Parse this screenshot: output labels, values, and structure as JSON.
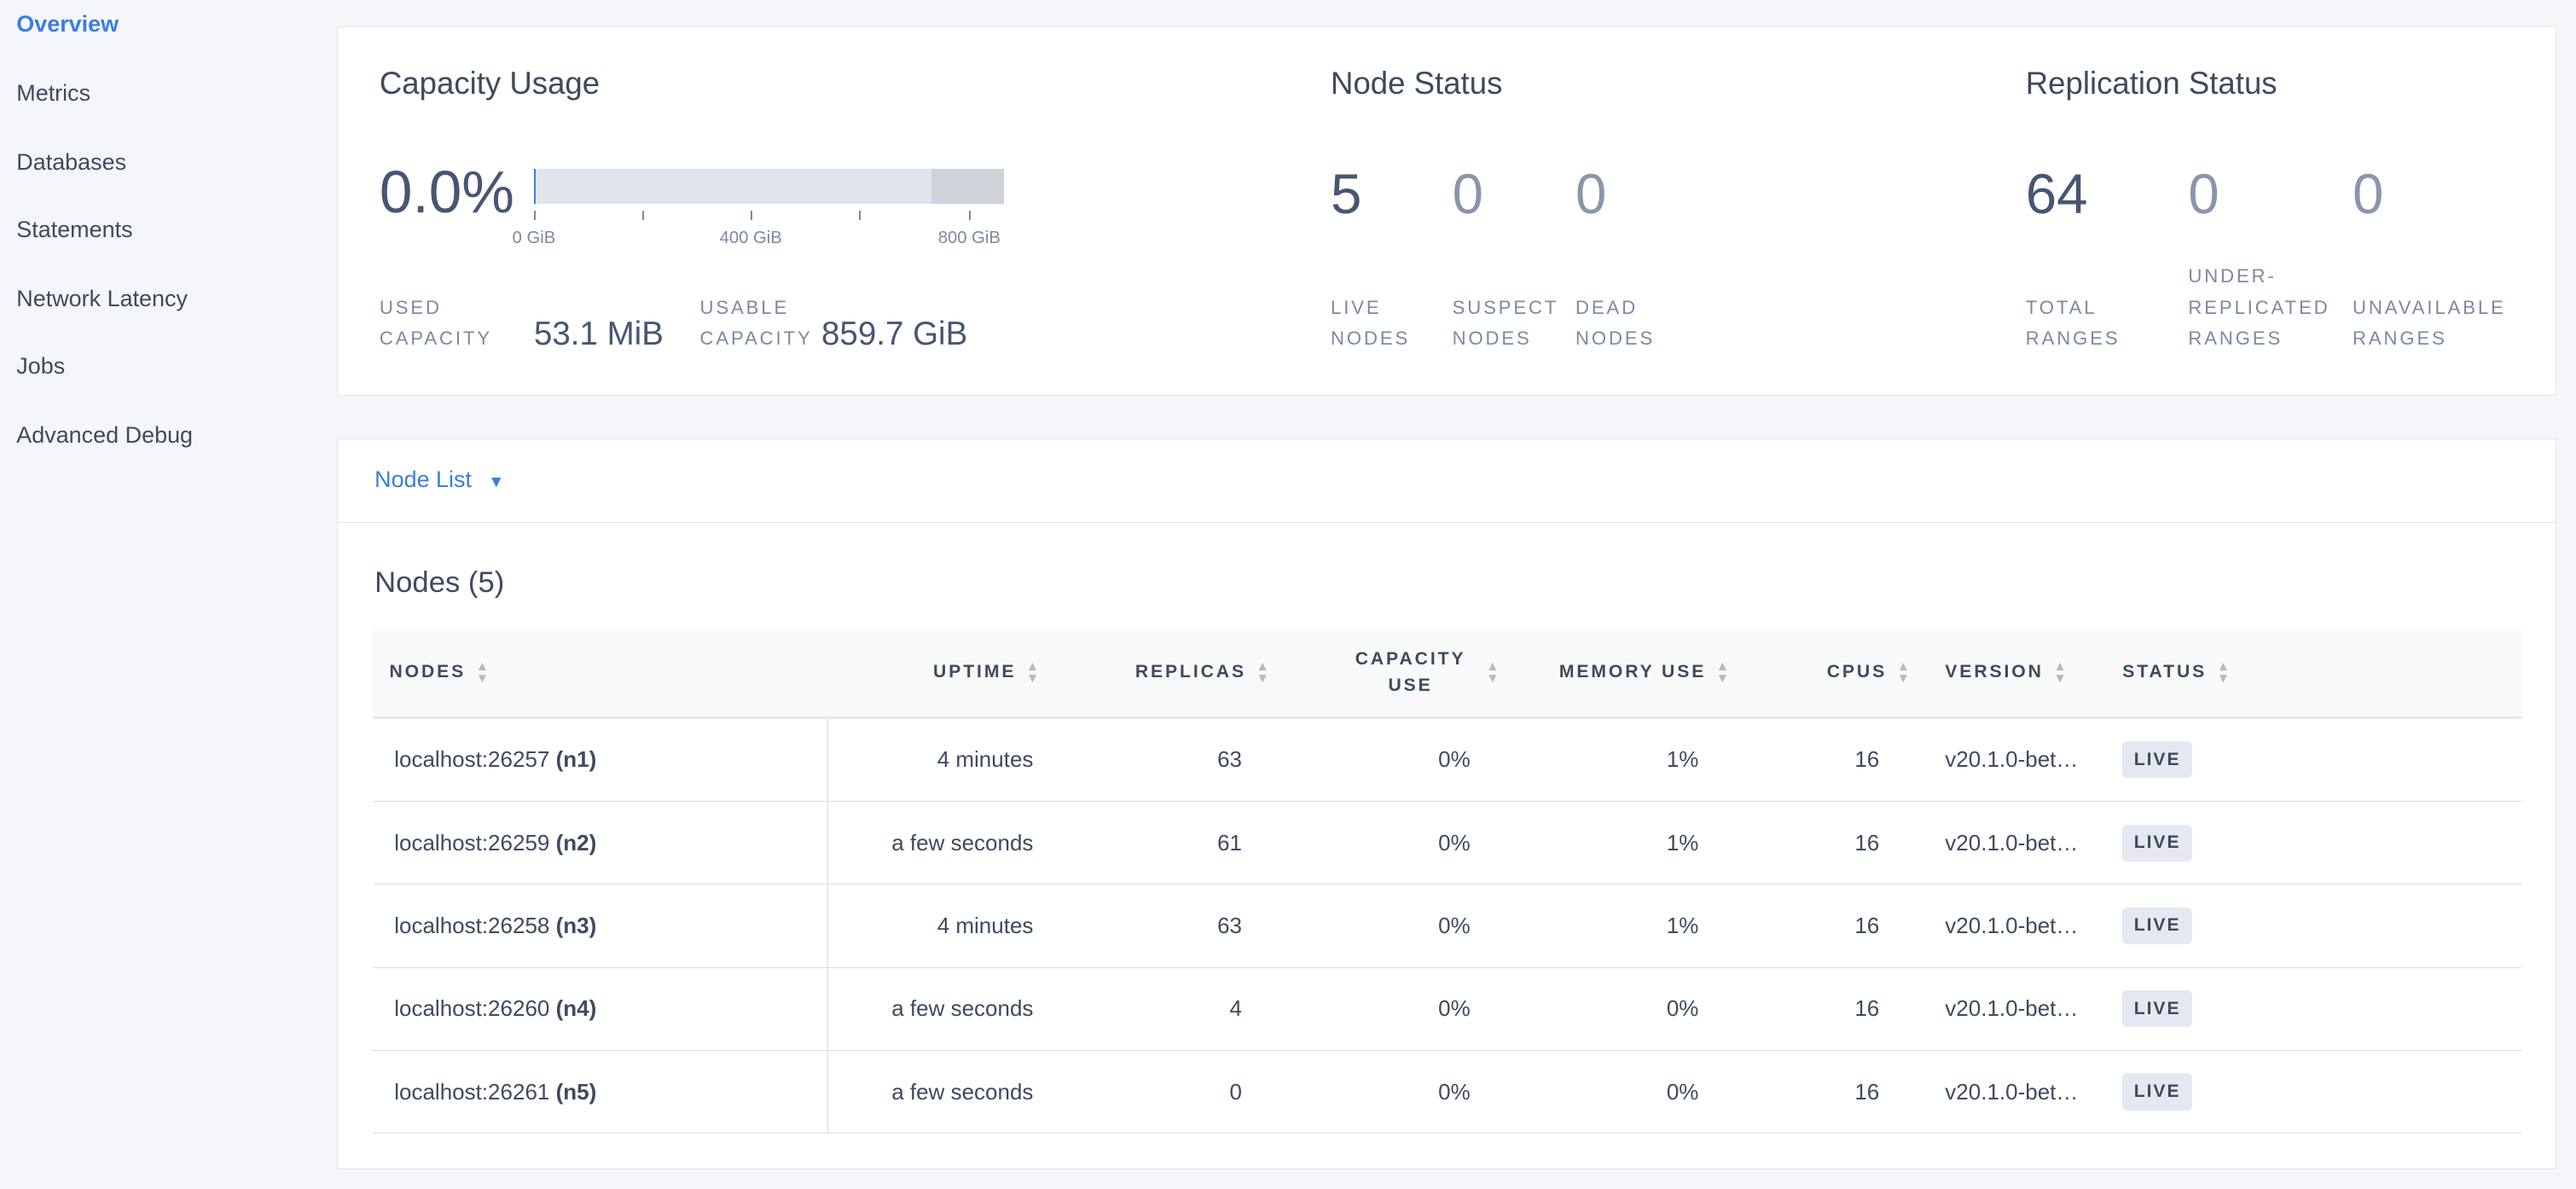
{
  "sidebar": {
    "items": [
      {
        "label": "Overview",
        "active": true
      },
      {
        "label": "Metrics"
      },
      {
        "label": "Databases"
      },
      {
        "label": "Statements"
      },
      {
        "label": "Network Latency"
      },
      {
        "label": "Jobs"
      },
      {
        "label": "Advanced Debug"
      }
    ]
  },
  "capacity": {
    "title": "Capacity Usage",
    "percent": "0.0%",
    "used_fraction": 0.0,
    "bar_ticks": [
      "0 GiB",
      "400 GiB",
      "800 GiB"
    ],
    "used_label_1": "USED",
    "used_label_2": "CAPACITY",
    "used_value": "53.1 MiB",
    "usable_label_1": "USABLE",
    "usable_label_2": "CAPACITY",
    "usable_value": "859.7 GiB"
  },
  "node_status": {
    "title": "Node Status",
    "stats": [
      {
        "value": "5",
        "label1": "LIVE",
        "label2": "NODES"
      },
      {
        "value": "0",
        "label1": "SUSPECT",
        "label2": "NODES"
      },
      {
        "value": "0",
        "label1": "DEAD",
        "label2": "NODES"
      }
    ]
  },
  "replication": {
    "title": "Replication Status",
    "stats": [
      {
        "value": "64",
        "label1": "",
        "label2": "TOTAL",
        "label3": "RANGES"
      },
      {
        "value": "0",
        "label1": "UNDER-",
        "label2": "REPLICATED",
        "label3": "RANGES"
      },
      {
        "value": "0",
        "label1": "",
        "label2": "UNAVAILABLE",
        "label3": "RANGES"
      }
    ]
  },
  "node_list": {
    "dropdown": "Node List",
    "heading": "Nodes (5)",
    "columns": [
      "NODES",
      "UPTIME",
      "REPLICAS",
      "CAPACITY USE",
      "MEMORY USE",
      "CPUS",
      "VERSION",
      "STATUS"
    ],
    "rows": [
      {
        "address": "localhost:26257",
        "id": "(n1)",
        "uptime": "4 minutes",
        "replicas": "63",
        "capacity": "0%",
        "memory": "1%",
        "cpus": "16",
        "version": "v20.1.0-bet…",
        "status": "LIVE"
      },
      {
        "address": "localhost:26259",
        "id": "(n2)",
        "uptime": "a few seconds",
        "replicas": "61",
        "capacity": "0%",
        "memory": "1%",
        "cpus": "16",
        "version": "v20.1.0-bet…",
        "status": "LIVE"
      },
      {
        "address": "localhost:26258",
        "id": "(n3)",
        "uptime": "4 minutes",
        "replicas": "63",
        "capacity": "0%",
        "memory": "1%",
        "cpus": "16",
        "version": "v20.1.0-bet…",
        "status": "LIVE"
      },
      {
        "address": "localhost:26260",
        "id": "(n4)",
        "uptime": "a few seconds",
        "replicas": "4",
        "capacity": "0%",
        "memory": "0%",
        "cpus": "16",
        "version": "v20.1.0-bet…",
        "status": "LIVE"
      },
      {
        "address": "localhost:26261",
        "id": "(n5)",
        "uptime": "a few seconds",
        "replicas": "0",
        "capacity": "0%",
        "memory": "0%",
        "cpus": "16",
        "version": "v20.1.0-bet…",
        "status": "LIVE"
      }
    ]
  },
  "colors": {
    "accent": "#3a7de1",
    "background": "#f5f6fa",
    "text": "#3e4a5e"
  }
}
